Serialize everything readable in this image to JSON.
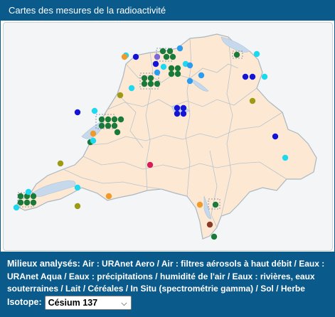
{
  "window": {
    "title": "Cartes des mesures de la radioactivité"
  },
  "colors": {
    "brand_blue": "#0a5a8c",
    "land": "#fde9d3",
    "border": "#a9b7c2",
    "lake": "#c6d9ec",
    "station_green": "#1a7a3a",
    "station_blue": "#1414d6",
    "station_cyan": "#1ed8ef",
    "station_sky": "#2b9cf0",
    "station_olive": "#9e9a13",
    "station_orange": "#f19a2c",
    "station_magenta": "#d81c5a",
    "station_brown": "#8a3a28"
  },
  "legend": {
    "heading": "Milieux analysés:",
    "items": [
      "Air : URAnet Aero",
      "Air : filtres aérosols à haut débit",
      "Eaux : URAnet Aqua",
      "Eaux : précipitations",
      "humidité de l'air",
      "Eaux : rivières, eaux souterraines",
      "Lait",
      "Céréales",
      "In Situ (spectrométrie gamma)",
      "Sol",
      "Herbe"
    ]
  },
  "isotope": {
    "label": "Isotope:",
    "selected": "Césium 137"
  }
}
